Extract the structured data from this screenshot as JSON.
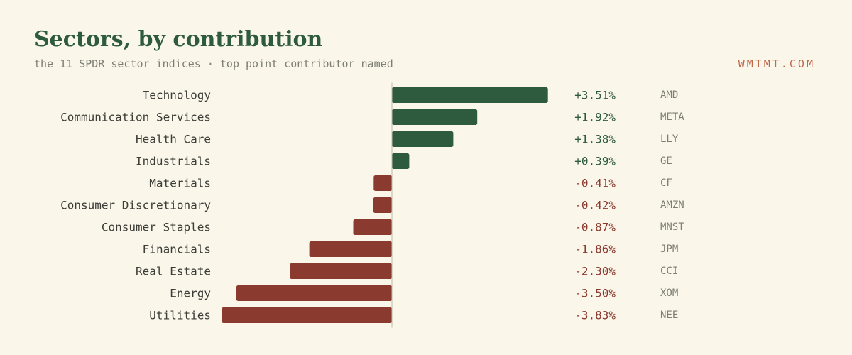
{
  "header": {
    "title": "Sectors, by contribution",
    "subtitle": "the 11 SPDR sector indices · top point contributor named",
    "brand": "WMTMT.COM"
  },
  "colors": {
    "positive": "#2e5a3e",
    "negative": "#8b3a2f",
    "background": "#faf7ea"
  },
  "chart_data": {
    "type": "bar",
    "orientation": "horizontal",
    "title": "Sectors, by contribution",
    "subtitle": "the 11 SPDR sector indices · top point contributor named",
    "xlabel": "",
    "ylabel": "",
    "xlim": [
      -4.0,
      4.0
    ],
    "grid": false,
    "categories": [
      "Technology",
      "Communication Services",
      "Health Care",
      "Industrials",
      "Materials",
      "Consumer Discretionary",
      "Consumer Staples",
      "Financials",
      "Real Estate",
      "Energy",
      "Utilities"
    ],
    "values": [
      3.51,
      1.92,
      1.38,
      0.39,
      -0.41,
      -0.42,
      -0.87,
      -1.86,
      -2.3,
      -3.5,
      -3.83
    ],
    "value_labels": [
      "+3.51%",
      "+1.92%",
      "+1.38%",
      "+0.39%",
      "-0.41%",
      "-0.42%",
      "-0.87%",
      "-1.86%",
      "-2.30%",
      "-3.50%",
      "-3.83%"
    ],
    "top_contributors": [
      "AMD",
      "META",
      "LLY",
      "GE",
      "CF",
      "AMZN",
      "MNST",
      "JPM",
      "CCI",
      "XOM",
      "NEE"
    ]
  }
}
